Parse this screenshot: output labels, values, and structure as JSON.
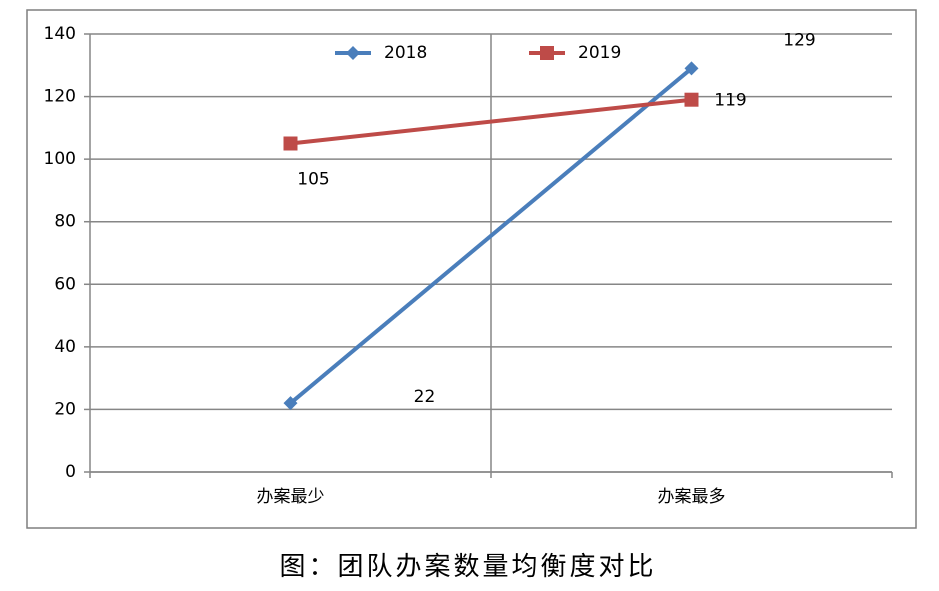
{
  "chart_data": {
    "type": "line",
    "title": "图：团队办案数量均衡度对比",
    "categories": [
      "办案最少",
      "办案最多"
    ],
    "series": [
      {
        "name": "2018",
        "color": "#4a7ebb",
        "marker": "diamond",
        "values": [
          22,
          129
        ]
      },
      {
        "name": "2019",
        "color": "#be4b48",
        "marker": "square",
        "values": [
          105,
          119
        ]
      }
    ],
    "ylim": [
      0,
      140
    ],
    "yticks": [
      0,
      20,
      40,
      60,
      80,
      100,
      120,
      140
    ],
    "grid": true,
    "legend": "top",
    "data_labels": true
  }
}
